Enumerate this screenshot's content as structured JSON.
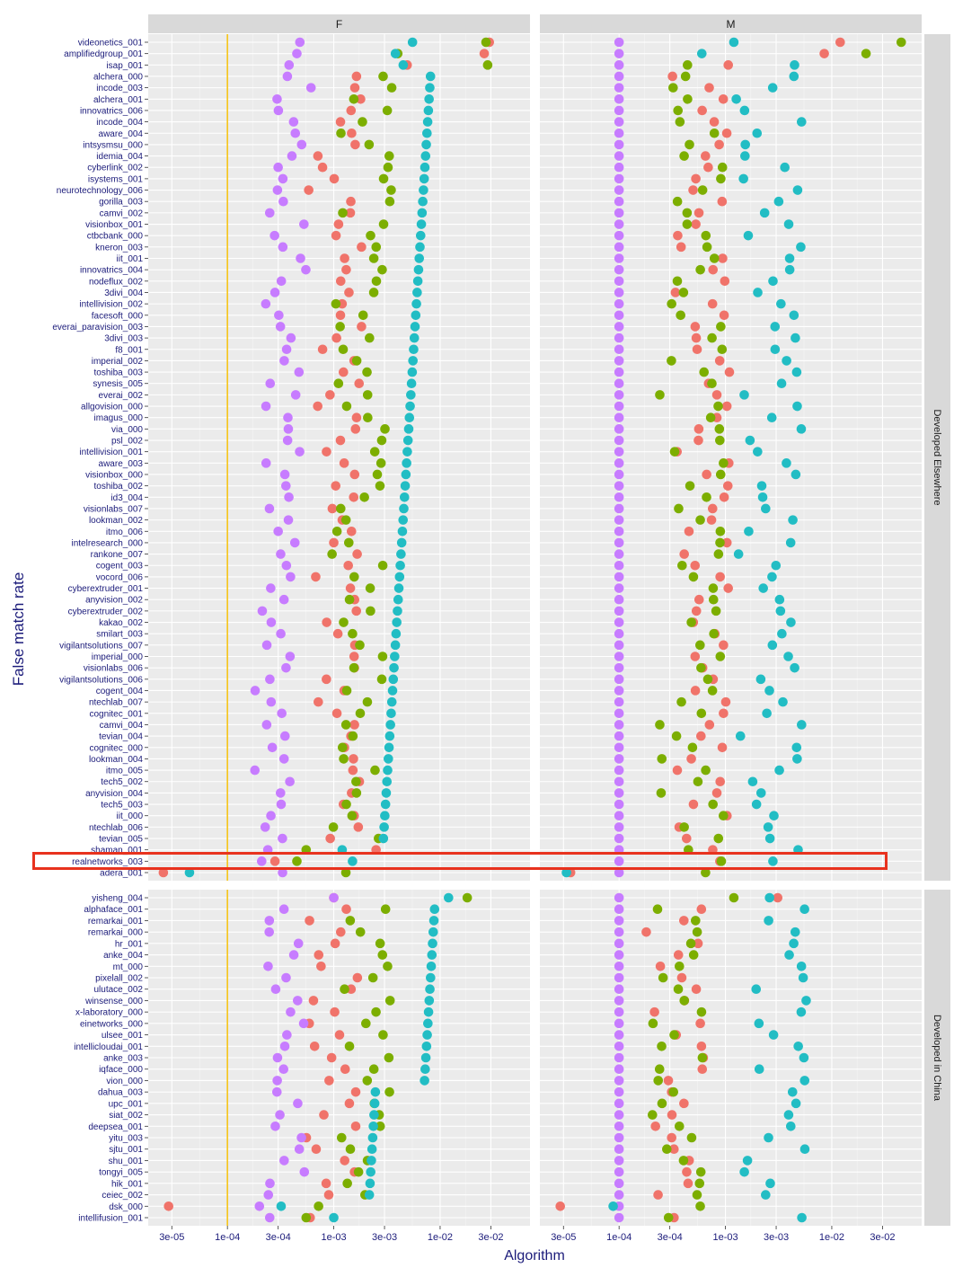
{
  "chart_data": {
    "type": "scatter",
    "ylabel": "False match rate",
    "xlabel": "Algorithm",
    "x_scale": "log10",
    "x_ticks": [
      "3e-05",
      "1e-04",
      "3e-04",
      "1e-03",
      "3e-03",
      "1e-02",
      "3e-02"
    ],
    "x_tick_values": [
      3e-05,
      0.0001,
      0.0003,
      0.001,
      0.003,
      0.01,
      0.03
    ],
    "xlim": [
      1.8e-05,
      0.07
    ],
    "reference_line": 0.0001,
    "facet_columns": [
      "F",
      "M"
    ],
    "facet_rows": [
      "Developed Elsewhere",
      "Developed in China"
    ],
    "highlight": "realnetworks_003",
    "colors": {
      "red": "#f0736a",
      "green": "#7cae00",
      "teal": "#22bdc4",
      "purple": "#c77cff",
      "refline": "#f5c518",
      "highlight": "#e8321e"
    },
    "panels": [
      {
        "row": "Developed Elsewhere",
        "labels": [
          "videonetics_001",
          "amplifiedgroup_001",
          "isap_001",
          "alchera_000",
          "incode_003",
          "alchera_001",
          "innovatrics_006",
          "incode_004",
          "aware_004",
          "intsysmsu_000",
          "idemia_004",
          "cyberlink_002",
          "isystems_001",
          "neurotechnology_006",
          "gorilla_003",
          "camvi_002",
          "visionbox_001",
          "ctbcbank_000",
          "kneron_003",
          "iit_001",
          "innovatrics_004",
          "nodeflux_002",
          "3divi_004",
          "intellivision_002",
          "facesoft_000",
          "everai_paravision_003",
          "3divi_003",
          "f8_001",
          "imperial_002",
          "toshiba_003",
          "synesis_005",
          "everai_002",
          "allgovision_000",
          "imagus_000",
          "via_000",
          "psl_002",
          "intellivision_001",
          "aware_003",
          "visionbox_000",
          "toshiba_002",
          "id3_004",
          "visionlabs_007",
          "lookman_002",
          "itmo_006",
          "intelresearch_000",
          "rankone_007",
          "cogent_003",
          "vocord_006",
          "cyberextruder_001",
          "anyvision_002",
          "cyberextruder_002",
          "kakao_002",
          "smilart_003",
          "vigilantsolutions_007",
          "imperial_000",
          "visionlabs_006",
          "vigilantsolutions_006",
          "cogent_004",
          "ntechlab_007",
          "cognitec_001",
          "camvi_004",
          "tevian_004",
          "cognitec_000",
          "lookman_004",
          "itmo_005",
          "tech5_002",
          "anyvision_004",
          "tech5_003",
          "iit_000",
          "ntechlab_006",
          "tevian_005",
          "shaman_001",
          "realnetworks_003",
          "adera_001"
        ]
      },
      {
        "row": "Developed in China",
        "labels": [
          "yisheng_004",
          "alphaface_001",
          "remarkai_001",
          "remarkai_000",
          "hr_001",
          "anke_004",
          "mt_000",
          "pixelall_002",
          "ulutace_002",
          "winsense_000",
          "x-laboratory_000",
          "einetworks_000",
          "ulsee_001",
          "intellicloudai_001",
          "anke_003",
          "iqface_000",
          "vion_000",
          "dahua_003",
          "upc_001",
          "siat_002",
          "deepsea_001",
          "yitu_003",
          "sjtu_001",
          "shu_001",
          "tongyi_005",
          "hik_001",
          "ceiec_002",
          "dsk_000",
          "intellifusion_001"
        ]
      }
    ],
    "series": [
      {
        "name": "",
        "color": "red"
      },
      {
        "name": "",
        "color": "green"
      },
      {
        "name": "",
        "color": "teal"
      },
      {
        "name": "",
        "color": "purple"
      }
    ]
  }
}
